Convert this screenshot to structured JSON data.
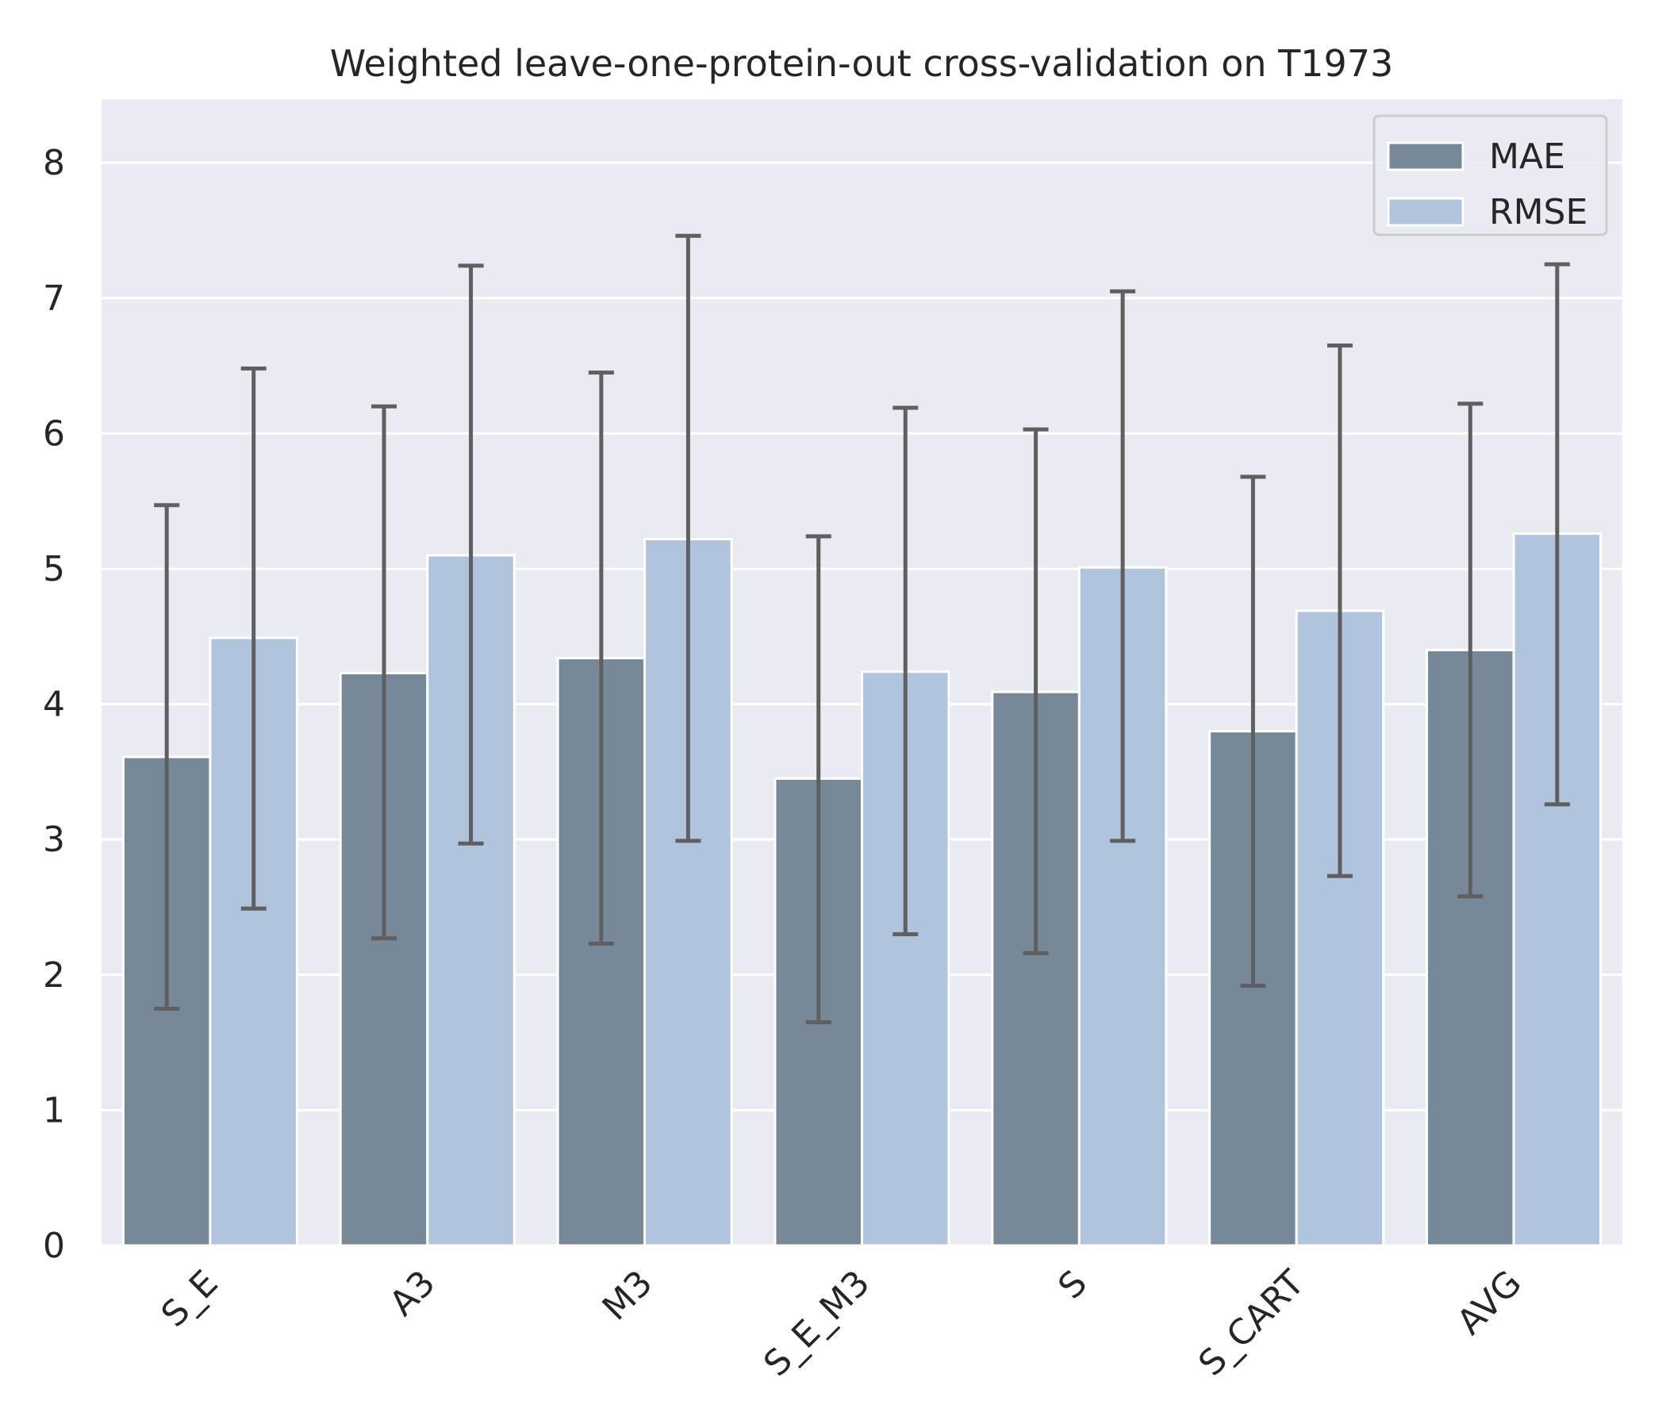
{
  "chart_data": {
    "type": "bar",
    "title": "Weighted leave-one-protein-out cross-validation on T1973",
    "xlabel": "",
    "ylabel": "",
    "categories": [
      "S_E",
      "A3",
      "M3",
      "S_E_M3",
      "S",
      "S_CART",
      "AVG"
    ],
    "series": [
      {
        "name": "MAE",
        "color": "#778899",
        "values": [
          3.61,
          4.23,
          4.34,
          3.45,
          4.09,
          3.8,
          4.4
        ],
        "error_low": [
          1.75,
          2.27,
          2.23,
          1.65,
          2.16,
          1.92,
          2.58
        ],
        "error_high": [
          5.47,
          6.2,
          6.45,
          5.24,
          6.03,
          5.68,
          6.22
        ]
      },
      {
        "name": "RMSE",
        "color": "#B0C4DE",
        "values": [
          4.49,
          5.1,
          5.22,
          4.24,
          5.01,
          4.69,
          5.26
        ],
        "error_low": [
          2.49,
          2.97,
          2.99,
          2.3,
          2.99,
          2.73,
          3.26
        ],
        "error_high": [
          6.48,
          7.24,
          7.46,
          6.19,
          7.05,
          6.65,
          7.25
        ]
      }
    ],
    "ylim": [
      0,
      8.47
    ],
    "yticks": [
      0,
      1,
      2,
      3,
      4,
      5,
      6,
      7,
      8
    ],
    "grid": true,
    "legend": "top-right",
    "background": "#EAEAF2",
    "error_bar_color": "#5F5F5F"
  }
}
